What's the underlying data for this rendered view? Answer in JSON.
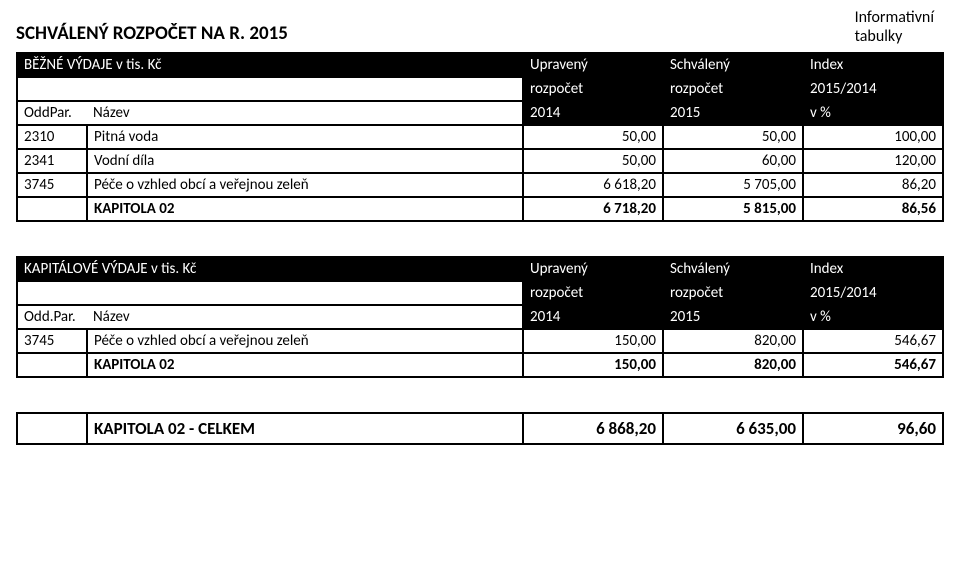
{
  "header": {
    "title": "SCHVÁLENÝ ROZPOČET NA R. 2015",
    "subtitle_line1": "Informativní",
    "subtitle_line2": "tabulky"
  },
  "table1": {
    "section_label": "BĚŽNÉ VÝDAJE v tis. Kč",
    "col3_l1": "Upravený",
    "col3_l2": "rozpočet",
    "col3_l3": "2014",
    "col4_l1": "Schválený",
    "col4_l2": "rozpočet",
    "col4_l3": "2015",
    "col5_l1": "Index",
    "col5_l2": "2015/2014",
    "col5_l3": "v %",
    "oddpar": "OddPar.",
    "nazev": "Název",
    "rows": [
      {
        "code": "2310",
        "name": "Pitná voda",
        "v1": "50,00",
        "v2": "50,00",
        "v3": "100,00"
      },
      {
        "code": "2341",
        "name": "Vodní díla",
        "v1": "50,00",
        "v2": "60,00",
        "v3": "120,00"
      },
      {
        "code": "3745",
        "name": "Péče o vzhled obcí a veřejnou zeleň",
        "v1": "6 618,20",
        "v2": "5 705,00",
        "v3": "86,20"
      }
    ],
    "sum": {
      "name": "KAPITOLA 02",
      "v1": "6 718,20",
      "v2": "5 815,00",
      "v3": "86,56"
    }
  },
  "table2": {
    "section_label": "KAPITÁLOVÉ VÝDAJE v tis. Kč",
    "col3_l1": "Upravený",
    "col3_l2": "rozpočet",
    "col3_l3": "2014",
    "col4_l1": "Schválený",
    "col4_l2": "rozpočet",
    "col4_l3": "2015",
    "col5_l1": "Index",
    "col5_l2": "2015/2014",
    "col5_l3": "v %",
    "oddpar": "Odd.Par.",
    "nazev": "Název",
    "rows": [
      {
        "code": "3745",
        "name": "Péče o vzhled obcí a veřejnou zeleň",
        "v1": "150,00",
        "v2": "820,00",
        "v3": "546,67"
      }
    ],
    "sum": {
      "name": "KAPITOLA 02",
      "v1": "150,00",
      "v2": "820,00",
      "v3": "546,67"
    }
  },
  "total": {
    "name": "KAPITOLA 02 - CELKEM",
    "v1": "6 868,20",
    "v2": "6 635,00",
    "v3": "96,60"
  }
}
